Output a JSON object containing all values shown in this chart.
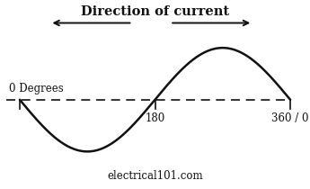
{
  "title": "Direction of current",
  "watermark": "electrical101.com",
  "zero_label": "0 Degrees",
  "label_180": "180",
  "label_360": "360 / 0",
  "bg_color": "#ffffff",
  "sine_color": "#111111",
  "dashed_color": "#111111",
  "title_fontsize": 10.5,
  "label_fontsize": 8.5,
  "watermark_fontsize": 8.5,
  "xlim": [
    -18,
    378
  ],
  "ylim": [
    -1.65,
    1.85
  ]
}
